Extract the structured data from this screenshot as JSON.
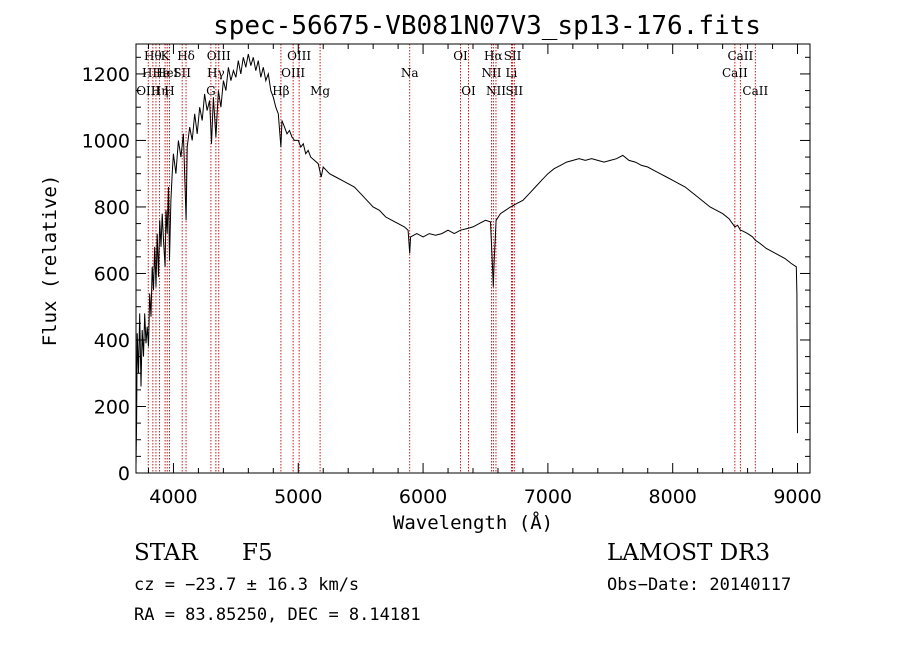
{
  "chart_data": {
    "type": "line",
    "title": "spec-56675-VB081N07V3_sp13-176.fits",
    "xlabel": "Wavelength (Å)",
    "ylabel": "Flux (relative)",
    "xlim": [
      3700,
      9100
    ],
    "ylim": [
      0,
      1290
    ],
    "x_ticks": [
      4000,
      5000,
      6000,
      7000,
      8000,
      9000
    ],
    "y_ticks": [
      0,
      200,
      400,
      600,
      800,
      1000,
      1200
    ],
    "series": [
      {
        "name": "spectrum",
        "color": "#000000",
        "points": [
          [
            3700,
            20
          ],
          [
            3705,
            150
          ],
          [
            3710,
            420
          ],
          [
            3720,
            300
          ],
          [
            3730,
            480
          ],
          [
            3740,
            260
          ],
          [
            3750,
            430
          ],
          [
            3760,
            350
          ],
          [
            3770,
            480
          ],
          [
            3780,
            390
          ],
          [
            3790,
            440
          ],
          [
            3800,
            380
          ],
          [
            3810,
            540
          ],
          [
            3820,
            470
          ],
          [
            3830,
            620
          ],
          [
            3840,
            550
          ],
          [
            3850,
            680
          ],
          [
            3860,
            560
          ],
          [
            3870,
            720
          ],
          [
            3880,
            590
          ],
          [
            3890,
            760
          ],
          [
            3900,
            680
          ],
          [
            3910,
            780
          ],
          [
            3920,
            700
          ],
          [
            3933,
            620
          ],
          [
            3940,
            790
          ],
          [
            3950,
            720
          ],
          [
            3960,
            860
          ],
          [
            3968,
            640
          ],
          [
            3980,
            820
          ],
          [
            3990,
            900
          ],
          [
            4000,
            960
          ],
          [
            4020,
            900
          ],
          [
            4040,
            1000
          ],
          [
            4060,
            950
          ],
          [
            4080,
            1020
          ],
          [
            4101,
            760
          ],
          [
            4110,
            980
          ],
          [
            4130,
            1040
          ],
          [
            4150,
            1000
          ],
          [
            4170,
            1080
          ],
          [
            4190,
            1020
          ],
          [
            4210,
            1100
          ],
          [
            4230,
            1060
          ],
          [
            4250,
            1140
          ],
          [
            4270,
            1090
          ],
          [
            4290,
            1120
          ],
          [
            4305,
            990
          ],
          [
            4320,
            1130
          ],
          [
            4340,
            1010
          ],
          [
            4360,
            1150
          ],
          [
            4380,
            1100
          ],
          [
            4400,
            1180
          ],
          [
            4420,
            1150
          ],
          [
            4440,
            1220
          ],
          [
            4460,
            1180
          ],
          [
            4480,
            1210
          ],
          [
            4500,
            1190
          ],
          [
            4520,
            1240
          ],
          [
            4540,
            1200
          ],
          [
            4560,
            1250
          ],
          [
            4580,
            1220
          ],
          [
            4600,
            1260
          ],
          [
            4620,
            1225
          ],
          [
            4640,
            1250
          ],
          [
            4660,
            1210
          ],
          [
            4680,
            1240
          ],
          [
            4700,
            1190
          ],
          [
            4720,
            1220
          ],
          [
            4740,
            1180
          ],
          [
            4760,
            1200
          ],
          [
            4780,
            1150
          ],
          [
            4800,
            1130
          ],
          [
            4820,
            1100
          ],
          [
            4840,
            1080
          ],
          [
            4861,
            980
          ],
          [
            4870,
            1060
          ],
          [
            4890,
            1040
          ],
          [
            4910,
            1020
          ],
          [
            4930,
            1030
          ],
          [
            4950,
            1010
          ],
          [
            4970,
            1000
          ],
          [
            5000,
            1000
          ],
          [
            5020,
            980
          ],
          [
            5040,
            990
          ],
          [
            5060,
            960
          ],
          [
            5080,
            970
          ],
          [
            5100,
            950
          ],
          [
            5130,
            940
          ],
          [
            5160,
            930
          ],
          [
            5184,
            890
          ],
          [
            5200,
            920
          ],
          [
            5250,
            900
          ],
          [
            5300,
            890
          ],
          [
            5350,
            880
          ],
          [
            5400,
            870
          ],
          [
            5450,
            860
          ],
          [
            5500,
            840
          ],
          [
            5550,
            820
          ],
          [
            5600,
            800
          ],
          [
            5650,
            790
          ],
          [
            5700,
            770
          ],
          [
            5750,
            760
          ],
          [
            5800,
            750
          ],
          [
            5850,
            740
          ],
          [
            5880,
            730
          ],
          [
            5893,
            660
          ],
          [
            5900,
            710
          ],
          [
            5950,
            720
          ],
          [
            6000,
            710
          ],
          [
            6050,
            720
          ],
          [
            6100,
            715
          ],
          [
            6150,
            720
          ],
          [
            6200,
            730
          ],
          [
            6250,
            720
          ],
          [
            6300,
            730
          ],
          [
            6350,
            735
          ],
          [
            6400,
            740
          ],
          [
            6450,
            750
          ],
          [
            6500,
            760
          ],
          [
            6540,
            755
          ],
          [
            6556,
            620
          ],
          [
            6563,
            560
          ],
          [
            6570,
            640
          ],
          [
            6585,
            760
          ],
          [
            6620,
            780
          ],
          [
            6660,
            790
          ],
          [
            6700,
            800
          ],
          [
            6750,
            810
          ],
          [
            6800,
            820
          ],
          [
            6850,
            840
          ],
          [
            6900,
            860
          ],
          [
            6950,
            880
          ],
          [
            7000,
            900
          ],
          [
            7050,
            915
          ],
          [
            7100,
            925
          ],
          [
            7150,
            935
          ],
          [
            7200,
            940
          ],
          [
            7250,
            945
          ],
          [
            7300,
            940
          ],
          [
            7350,
            945
          ],
          [
            7400,
            940
          ],
          [
            7450,
            935
          ],
          [
            7500,
            940
          ],
          [
            7550,
            945
          ],
          [
            7600,
            955
          ],
          [
            7650,
            940
          ],
          [
            7700,
            935
          ],
          [
            7750,
            925
          ],
          [
            7800,
            920
          ],
          [
            7850,
            910
          ],
          [
            7900,
            900
          ],
          [
            7950,
            890
          ],
          [
            8000,
            880
          ],
          [
            8050,
            870
          ],
          [
            8100,
            860
          ],
          [
            8150,
            845
          ],
          [
            8200,
            830
          ],
          [
            8250,
            815
          ],
          [
            8300,
            800
          ],
          [
            8350,
            790
          ],
          [
            8400,
            780
          ],
          [
            8450,
            765
          ],
          [
            8498,
            740
          ],
          [
            8520,
            745
          ],
          [
            8542,
            730
          ],
          [
            8560,
            728
          ],
          [
            8600,
            720
          ],
          [
            8640,
            710
          ],
          [
            8662,
            700
          ],
          [
            8700,
            690
          ],
          [
            8750,
            675
          ],
          [
            8800,
            665
          ],
          [
            8850,
            655
          ],
          [
            8900,
            645
          ],
          [
            8950,
            630
          ],
          [
            8990,
            620
          ],
          [
            8995,
            540
          ],
          [
            9000,
            120
          ]
        ]
      }
    ],
    "spectral_lines": [
      {
        "wl": 3798,
        "label": "OIII",
        "row": 2
      },
      {
        "wl": 3835,
        "label": "Hθ",
        "row": 0
      },
      {
        "wl": 3860,
        "label": "HHe",
        "row": 1
      },
      {
        "wl": 3889,
        "label": "Hη",
        "row": 2
      },
      {
        "wl": 3933,
        "label": "K",
        "row": 0
      },
      {
        "wl": 3950,
        "label": "HeI",
        "row": 1
      },
      {
        "wl": 3968,
        "label": "H",
        "row": 2
      },
      {
        "wl": 4070,
        "label": "SII",
        "row": 1
      },
      {
        "wl": 4101,
        "label": "Hδ",
        "row": 0
      },
      {
        "wl": 4300,
        "label": "G",
        "row": 2
      },
      {
        "wl": 4340,
        "label": "Hγ",
        "row": 1
      },
      {
        "wl": 4363,
        "label": "OIII",
        "row": 0
      },
      {
        "wl": 4861,
        "label": "Hβ",
        "row": 2
      },
      {
        "wl": 4959,
        "label": "OIII",
        "row": 1
      },
      {
        "wl": 5007,
        "label": "OIII",
        "row": 0
      },
      {
        "wl": 5175,
        "label": "Mg",
        "row": 2
      },
      {
        "wl": 5893,
        "label": "Na",
        "row": 1
      },
      {
        "wl": 6300,
        "label": "OI",
        "row": 0
      },
      {
        "wl": 6364,
        "label": "OI",
        "row": 2
      },
      {
        "wl": 6548,
        "label": "NII",
        "row": 1
      },
      {
        "wl": 6563,
        "label": "Hα",
        "row": 0
      },
      {
        "wl": 6584,
        "label": "NII",
        "row": 2
      },
      {
        "wl": 6708,
        "label": "Li",
        "row": 1
      },
      {
        "wl": 6717,
        "label": "SII",
        "row": 0
      },
      {
        "wl": 6731,
        "label": "SII",
        "row": 2
      },
      {
        "wl": 8498,
        "label": "CaII",
        "row": 1
      },
      {
        "wl": 8542,
        "label": "CaII",
        "row": 0
      },
      {
        "wl": 8662,
        "label": "CaII",
        "row": 2
      }
    ]
  },
  "info": {
    "class": "STAR",
    "subclass": "F5",
    "survey": "LAMOST DR3",
    "velocity": "cz = −23.7 ± 16.3 km/s",
    "obs_date": "Obs−Date: 20140117",
    "coords": "RA =  83.85250, DEC =   8.14181"
  },
  "colors": {
    "line_marker": "#cc0000",
    "spectrum": "#000000"
  }
}
